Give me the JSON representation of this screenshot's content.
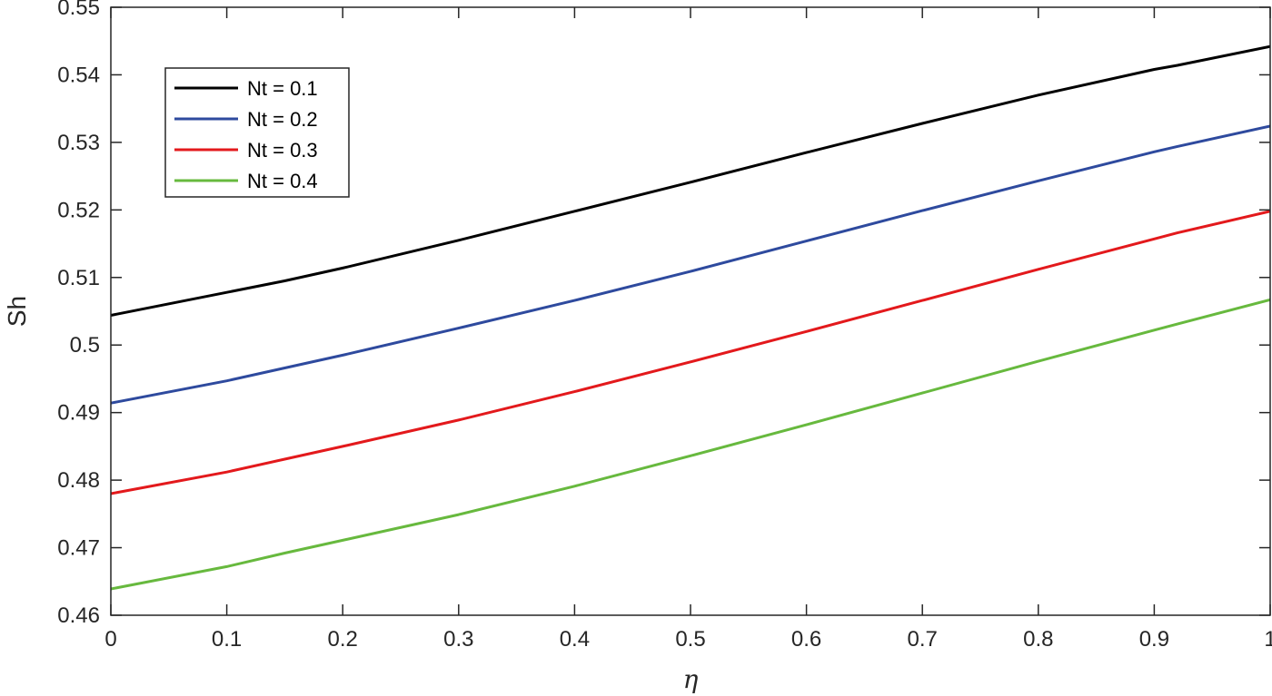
{
  "chart_data": {
    "type": "line",
    "xlabel": "η",
    "ylabel": "Sh",
    "xlim": [
      0,
      1
    ],
    "ylim": [
      0.46,
      0.55
    ],
    "x_ticks": [
      "0",
      "0.1",
      "0.2",
      "0.3",
      "0.4",
      "0.5",
      "0.6",
      "0.7",
      "0.8",
      "0.9",
      "1"
    ],
    "y_ticks": [
      "0.46",
      "0.47",
      "0.48",
      "0.49",
      "0.5",
      "0.51",
      "0.52",
      "0.53",
      "0.54",
      "0.55"
    ],
    "grid": false,
    "legend_position": "top-left",
    "x": [
      0,
      0.1,
      0.15,
      0.2,
      0.3,
      0.4,
      0.5,
      0.6,
      0.7,
      0.8,
      0.9,
      0.92,
      1
    ],
    "series": [
      {
        "name": "Nt = 0.1",
        "color": "#000000",
        "values": [
          0.5044,
          0.5078,
          0.5095,
          0.5114,
          0.5155,
          0.5198,
          0.5241,
          0.5285,
          0.5328,
          0.537,
          0.5408,
          0.5414,
          0.5442
        ]
      },
      {
        "name": "Nt = 0.2",
        "color": "#2e4a9e",
        "values": [
          0.4914,
          0.4947,
          0.4966,
          0.4985,
          0.5025,
          0.5066,
          0.5109,
          0.5154,
          0.5199,
          0.5243,
          0.5286,
          0.5294,
          0.5324
        ]
      },
      {
        "name": "Nt = 0.3",
        "color": "#e3191c",
        "values": [
          0.478,
          0.4812,
          0.4831,
          0.485,
          0.4889,
          0.4931,
          0.4975,
          0.502,
          0.5066,
          0.5112,
          0.5157,
          0.5166,
          0.5198
        ]
      },
      {
        "name": "Nt = 0.4",
        "color": "#67b93e",
        "values": [
          0.4639,
          0.4672,
          0.4692,
          0.4711,
          0.4749,
          0.4791,
          0.4836,
          0.4882,
          0.4929,
          0.4976,
          0.5022,
          0.5031,
          0.5067
        ]
      }
    ]
  }
}
